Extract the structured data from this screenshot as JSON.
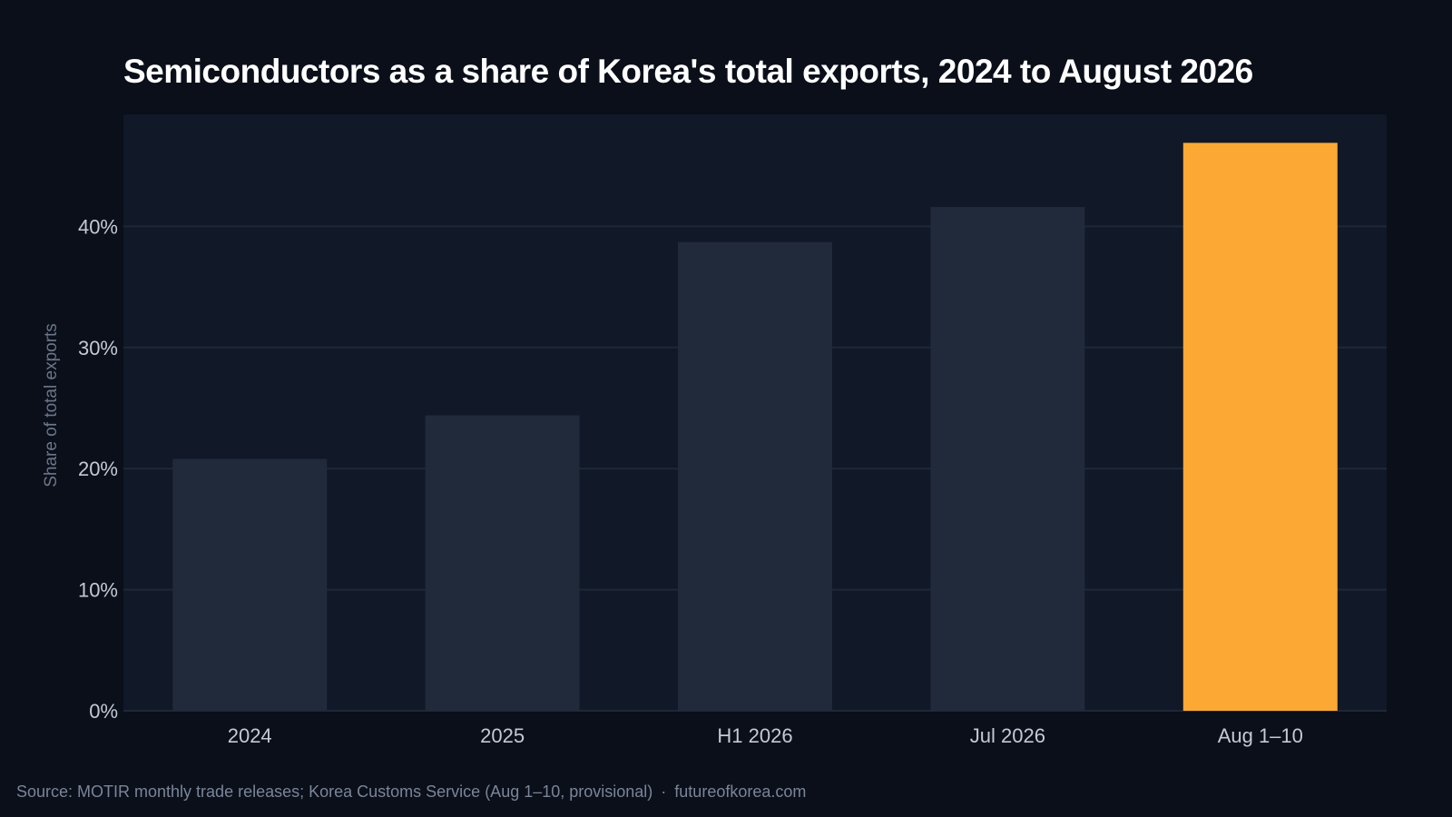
{
  "chart_data": {
    "type": "bar",
    "title": "Semiconductors as a share of Korea's total exports, 2024 to August 2026",
    "xlabel": "",
    "ylabel": "Share of total exports",
    "categories": [
      "2024",
      "2025",
      "H1 2026",
      "Jul 2026",
      "Aug 1–10"
    ],
    "values": [
      20.8,
      24.4,
      38.7,
      41.6,
      46.9
    ],
    "unit": "%",
    "ylim": [
      0,
      47
    ],
    "yticks": [
      "0%",
      "10%",
      "20%",
      "30%",
      "40%"
    ],
    "ytick_values": [
      0,
      10,
      20,
      30,
      40
    ],
    "grid": true,
    "highlight_index": 4
  },
  "colors": {
    "background": "#0a0f1a",
    "plot_background": "#111827",
    "bar": "#212a3b",
    "highlight": "#fba834",
    "gridline": "#1f2838"
  },
  "footer": {
    "source": "Source: MOTIR monthly trade releases; Korea Customs Service (Aug 1–10, provisional)",
    "separator": "·",
    "site": "futureofkorea.com"
  }
}
